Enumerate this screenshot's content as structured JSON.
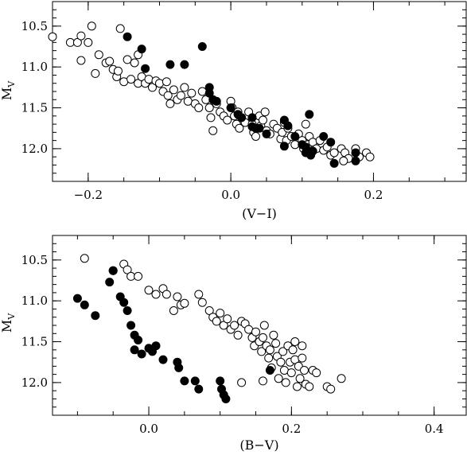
{
  "chart_data": [
    {
      "type": "scatter",
      "xlabel": "(V−I)",
      "ylabel": {
        "main": "M",
        "sub": "V"
      },
      "xlim": [
        -0.25,
        0.33
      ],
      "ylim": [
        12.4,
        10.2
      ],
      "y_inverted": true,
      "x_ticks": [
        -0.2,
        0.0,
        0.2
      ],
      "x_tick_labels": [
        "−0.2",
        "0.0",
        "0.2"
      ],
      "y_ticks": [
        10.5,
        11.0,
        11.5,
        12.0
      ],
      "y_tick_labels": [
        "10.5",
        "11.0",
        "11.5",
        "12.0"
      ],
      "grid": false,
      "series": [
        {
          "marker": "open-circle",
          "points": [
            [
              -0.25,
              10.63
            ],
            [
              -0.225,
              10.7
            ],
            [
              -0.215,
              10.7
            ],
            [
              -0.21,
              10.62
            ],
            [
              -0.2,
              10.7
            ],
            [
              -0.195,
              10.5
            ],
            [
              -0.21,
              10.92
            ],
            [
              -0.19,
              11.08
            ],
            [
              -0.185,
              10.85
            ],
            [
              -0.175,
              10.95
            ],
            [
              -0.17,
              10.93
            ],
            [
              -0.165,
              11.03
            ],
            [
              -0.16,
              11.12
            ],
            [
              -0.158,
              11.05
            ],
            [
              -0.155,
              10.53
            ],
            [
              -0.15,
              11.18
            ],
            [
              -0.14,
              11.15
            ],
            [
              -0.145,
              10.91
            ],
            [
              -0.135,
              10.95
            ],
            [
              -0.13,
              11.2
            ],
            [
              -0.125,
              11.12
            ],
            [
              -0.13,
              10.85
            ],
            [
              -0.12,
              11.2
            ],
            [
              -0.115,
              11.15
            ],
            [
              -0.11,
              11.25
            ],
            [
              -0.105,
              11.17
            ],
            [
              -0.1,
              11.2
            ],
            [
              -0.095,
              11.3
            ],
            [
              -0.09,
              11.18
            ],
            [
              -0.088,
              11.35
            ],
            [
              -0.085,
              11.45
            ],
            [
              -0.08,
              11.28
            ],
            [
              -0.075,
              11.4
            ],
            [
              -0.07,
              11.35
            ],
            [
              -0.065,
              11.25
            ],
            [
              -0.06,
              11.42
            ],
            [
              -0.055,
              11.32
            ],
            [
              -0.05,
              11.45
            ],
            [
              -0.045,
              11.5
            ],
            [
              -0.04,
              11.3
            ],
            [
              -0.035,
              11.4
            ],
            [
              -0.03,
              11.5
            ],
            [
              -0.028,
              11.62
            ],
            [
              -0.025,
              11.78
            ],
            [
              -0.02,
              11.45
            ],
            [
              -0.015,
              11.55
            ],
            [
              -0.01,
              11.6
            ],
            [
              -0.005,
              11.65
            ],
            [
              0.0,
              11.42
            ],
            [
              0.002,
              11.5
            ],
            [
              0.005,
              11.6
            ],
            [
              0.008,
              11.7
            ],
            [
              0.01,
              11.55
            ],
            [
              0.012,
              11.75
            ],
            [
              0.015,
              11.62
            ],
            [
              0.02,
              11.68
            ],
            [
              0.025,
              11.55
            ],
            [
              0.03,
              11.7
            ],
            [
              0.032,
              11.8
            ],
            [
              0.035,
              11.85
            ],
            [
              0.04,
              11.6
            ],
            [
              0.042,
              11.72
            ],
            [
              0.045,
              11.65
            ],
            [
              0.048,
              11.55
            ],
            [
              0.05,
              11.78
            ],
            [
              0.055,
              11.82
            ],
            [
              0.06,
              11.7
            ],
            [
              0.065,
              11.75
            ],
            [
              0.07,
              11.88
            ],
            [
              0.072,
              11.8
            ],
            [
              0.075,
              11.68
            ],
            [
              0.078,
              11.9
            ],
            [
              0.08,
              11.75
            ],
            [
              0.085,
              11.85
            ],
            [
              0.09,
              11.95
            ],
            [
              0.095,
              11.82
            ],
            [
              0.1,
              11.9
            ],
            [
              0.102,
              12.0
            ],
            [
              0.105,
              11.7
            ],
            [
              0.108,
              11.95
            ],
            [
              0.11,
              11.85
            ],
            [
              0.112,
              12.05
            ],
            [
              0.115,
              11.92
            ],
            [
              0.12,
              12.0
            ],
            [
              0.125,
              11.9
            ],
            [
              0.13,
              12.02
            ],
            [
              0.135,
              11.98
            ],
            [
              0.14,
              12.08
            ],
            [
              0.145,
              12.05
            ],
            [
              0.155,
              12.0
            ],
            [
              0.16,
              12.05
            ],
            [
              0.165,
              12.12
            ],
            [
              0.175,
              12.0
            ],
            [
              0.18,
              12.1
            ],
            [
              0.19,
              12.05
            ],
            [
              0.195,
              12.1
            ],
            [
              0.158,
              12.15
            ]
          ]
        },
        {
          "marker": "filled-circle",
          "points": [
            [
              -0.145,
              10.63
            ],
            [
              -0.125,
              10.78
            ],
            [
              -0.12,
              11.02
            ],
            [
              -0.085,
              10.97
            ],
            [
              -0.065,
              10.97
            ],
            [
              -0.04,
              10.75
            ],
            [
              -0.03,
              11.25
            ],
            [
              -0.03,
              11.32
            ],
            [
              -0.025,
              11.4
            ],
            [
              -0.02,
              11.42
            ],
            [
              0.0,
              11.5
            ],
            [
              0.01,
              11.58
            ],
            [
              0.015,
              11.62
            ],
            [
              0.03,
              11.62
            ],
            [
              0.03,
              11.73
            ],
            [
              0.035,
              11.75
            ],
            [
              0.04,
              11.75
            ],
            [
              0.05,
              11.82
            ],
            [
              0.075,
              11.65
            ],
            [
              0.075,
              11.97
            ],
            [
              0.08,
              11.72
            ],
            [
              0.09,
              11.85
            ],
            [
              0.1,
              11.95
            ],
            [
              0.105,
              11.98
            ],
            [
              0.11,
              11.58
            ],
            [
              0.112,
              12.08
            ],
            [
              0.115,
              12.03
            ],
            [
              0.13,
              11.85
            ],
            [
              0.14,
              11.92
            ],
            [
              0.145,
              12.18
            ],
            [
              0.175,
              12.05
            ],
            [
              0.175,
              12.15
            ],
            [
              0.105,
              12.05
            ]
          ]
        }
      ]
    },
    {
      "type": "scatter",
      "xlabel": "(B−V)",
      "ylabel": {
        "main": "M",
        "sub": "V"
      },
      "xlim": [
        -0.135,
        0.445
      ],
      "ylim": [
        12.4,
        10.2
      ],
      "y_inverted": true,
      "x_ticks": [
        0.0,
        0.2,
        0.4
      ],
      "x_tick_labels": [
        "0.0",
        "0.2",
        "0.4"
      ],
      "y_ticks": [
        10.5,
        11.0,
        11.5,
        12.0
      ],
      "y_tick_labels": [
        "10.5",
        "11.0",
        "11.5",
        "12.0"
      ],
      "grid": false,
      "series": [
        {
          "marker": "open-circle",
          "points": [
            [
              -0.09,
              10.48
            ],
            [
              -0.05,
              10.63
            ],
            [
              -0.035,
              10.55
            ],
            [
              -0.03,
              10.62
            ],
            [
              -0.025,
              10.7
            ],
            [
              -0.015,
              10.7
            ],
            [
              0.0,
              10.87
            ],
            [
              0.01,
              10.92
            ],
            [
              0.02,
              10.85
            ],
            [
              0.025,
              10.92
            ],
            [
              0.035,
              11.12
            ],
            [
              0.04,
              10.95
            ],
            [
              0.045,
              11.05
            ],
            [
              0.05,
              11.03
            ],
            [
              0.07,
              10.92
            ],
            [
              0.075,
              11.02
            ],
            [
              0.085,
              11.12
            ],
            [
              0.09,
              11.2
            ],
            [
              0.095,
              11.25
            ],
            [
              0.1,
              11.15
            ],
            [
              0.105,
              11.3
            ],
            [
              0.11,
              11.22
            ],
            [
              0.115,
              11.35
            ],
            [
              0.12,
              11.3
            ],
            [
              0.125,
              11.42
            ],
            [
              0.13,
              11.25
            ],
            [
              0.135,
              11.28
            ],
            [
              0.14,
              11.35
            ],
            [
              0.145,
              11.45
            ],
            [
              0.148,
              11.55
            ],
            [
              0.15,
              11.38
            ],
            [
              0.155,
              11.5
            ],
            [
              0.158,
              11.62
            ],
            [
              0.16,
              11.45
            ],
            [
              0.162,
              11.3
            ],
            [
              0.165,
              11.55
            ],
            [
              0.168,
              11.7
            ],
            [
              0.17,
              11.6
            ],
            [
              0.172,
              11.82
            ],
            [
              0.175,
              11.42
            ],
            [
              0.178,
              11.52
            ],
            [
              0.18,
              11.68
            ],
            [
              0.182,
              11.95
            ],
            [
              0.185,
              11.75
            ],
            [
              0.188,
              11.62
            ],
            [
              0.19,
              11.85
            ],
            [
              0.192,
              12.0
            ],
            [
              0.195,
              11.55
            ],
            [
              0.198,
              11.75
            ],
            [
              0.2,
              11.88
            ],
            [
              0.202,
              11.6
            ],
            [
              0.205,
              11.72
            ],
            [
              0.208,
              12.05
            ],
            [
              0.21,
              11.8
            ],
            [
              0.212,
              11.95
            ],
            [
              0.215,
              11.7
            ],
            [
              0.218,
              11.85
            ],
            [
              0.22,
              12.02
            ],
            [
              0.225,
              12.05
            ],
            [
              0.23,
              11.85
            ],
            [
              0.235,
              11.88
            ],
            [
              0.25,
              12.05
            ],
            [
              0.255,
              12.08
            ],
            [
              0.27,
              11.95
            ],
            [
              0.13,
              12.0
            ],
            [
              0.16,
              11.98
            ],
            [
              0.205,
              11.5
            ],
            [
              0.215,
              11.55
            ]
          ]
        },
        {
          "marker": "filled-circle",
          "points": [
            [
              -0.1,
              10.97
            ],
            [
              -0.09,
              11.05
            ],
            [
              -0.075,
              11.18
            ],
            [
              -0.05,
              10.63
            ],
            [
              -0.055,
              10.77
            ],
            [
              -0.04,
              10.95
            ],
            [
              -0.035,
              11.02
            ],
            [
              -0.03,
              11.12
            ],
            [
              -0.025,
              11.3
            ],
            [
              -0.02,
              11.42
            ],
            [
              -0.015,
              11.48
            ],
            [
              -0.02,
              11.6
            ],
            [
              -0.01,
              11.65
            ],
            [
              0.0,
              11.58
            ],
            [
              0.005,
              11.62
            ],
            [
              0.01,
              11.55
            ],
            [
              0.02,
              11.72
            ],
            [
              0.04,
              11.75
            ],
            [
              0.042,
              11.82
            ],
            [
              0.05,
              11.98
            ],
            [
              0.065,
              11.98
            ],
            [
              0.07,
              12.08
            ],
            [
              0.1,
              11.98
            ],
            [
              0.102,
              12.08
            ],
            [
              0.105,
              12.15
            ],
            [
              0.108,
              12.2
            ],
            [
              0.17,
              11.85
            ]
          ]
        }
      ]
    }
  ]
}
